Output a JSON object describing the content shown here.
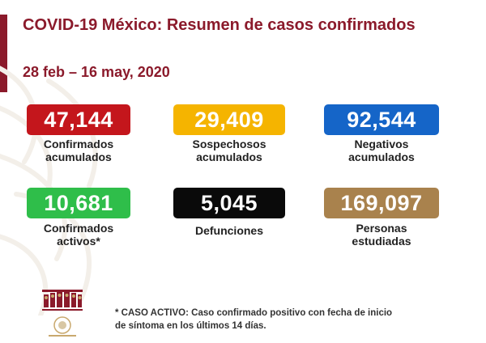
{
  "header": {
    "title": "COVID-19 México: Resumen de casos confirmados",
    "date_range": "28 feb – 16 may, 2020"
  },
  "stats": [
    {
      "value": "47,144",
      "label_line1": "Confirmados",
      "label_line2": "acumulados",
      "color": "#c4161c"
    },
    {
      "value": "29,409",
      "label_line1": "Sospechosos",
      "label_line2": "acumulados",
      "color": "#f5b400"
    },
    {
      "value": "92,544",
      "label_line1": "Negativos",
      "label_line2": "acumulados",
      "color": "#1565c8"
    },
    {
      "value": "10,681",
      "label_line1": "Confirmados",
      "label_line2": "activos*",
      "color": "#2fbe4a"
    },
    {
      "value": "5,045",
      "label_line1": "Defunciones",
      "label_line2": "",
      "color": "#0a0a0a"
    },
    {
      "value": "169,097",
      "label_line1": "Personas",
      "label_line2": "estudiadas",
      "color": "#a9824d"
    }
  ],
  "footnote": {
    "line1": "* CASO ACTIVO: Caso confirmado positivo con fecha de inicio",
    "line2": "de síntoma en los últimos 14 días."
  },
  "colors": {
    "accent": "#8b1a2b"
  },
  "icons": [
    "coat-of-arms-watermark",
    "government-emblem-icon"
  ]
}
